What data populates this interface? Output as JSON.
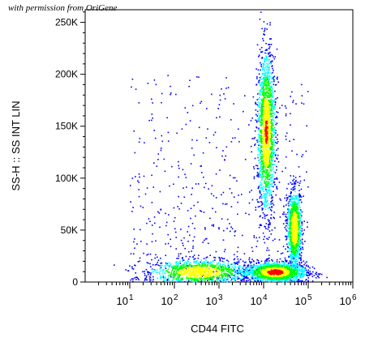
{
  "caption": "with permission from OriGene",
  "chart_data": {
    "type": "scatter",
    "subtype": "flow-cytometry-density-dot-plot",
    "xlabel": "CD44 FITC",
    "ylabel": "SS-H :: SS INT LIN",
    "x_scale": "log",
    "xlim": [
      1,
      1000000
    ],
    "ylim": [
      0,
      262144
    ],
    "x_ticks": [
      {
        "value": 10,
        "base": "10",
        "exp": "1"
      },
      {
        "value": 100,
        "base": "10",
        "exp": "2"
      },
      {
        "value": 1000,
        "base": "10",
        "exp": "3"
      },
      {
        "value": 10000,
        "base": "10",
        "exp": "4"
      },
      {
        "value": 100000,
        "base": "10",
        "exp": "5"
      },
      {
        "value": 1000000,
        "base": "10",
        "exp": "6"
      }
    ],
    "y_ticks": [
      {
        "value": 0,
        "label": "0"
      },
      {
        "value": 50000,
        "label": "50K"
      },
      {
        "value": 100000,
        "label": "100K"
      },
      {
        "value": 150000,
        "label": "150K"
      },
      {
        "value": 200000,
        "label": "200K"
      },
      {
        "value": 250000,
        "label": "250K"
      }
    ],
    "populations": [
      {
        "log10_x_center": 2.55,
        "y_center": 10000,
        "log10_x_spread": 0.55,
        "y_spread": 6000,
        "density": "medium"
      },
      {
        "log10_x_center": 4.25,
        "y_center": 10000,
        "log10_x_spread": 0.35,
        "y_spread": 5000,
        "density": "highest"
      },
      {
        "log10_x_center": 4.05,
        "y_center": 145000,
        "log10_x_spread": 0.1,
        "y_spread": 38000,
        "density": "high"
      },
      {
        "log10_x_center": 4.68,
        "y_center": 52000,
        "log10_x_spread": 0.08,
        "y_spread": 18000,
        "density": "medium"
      }
    ],
    "color_scale": [
      "#0000ff",
      "#00ffff",
      "#00ff00",
      "#ffff00",
      "#ff0000"
    ],
    "grid": false
  }
}
